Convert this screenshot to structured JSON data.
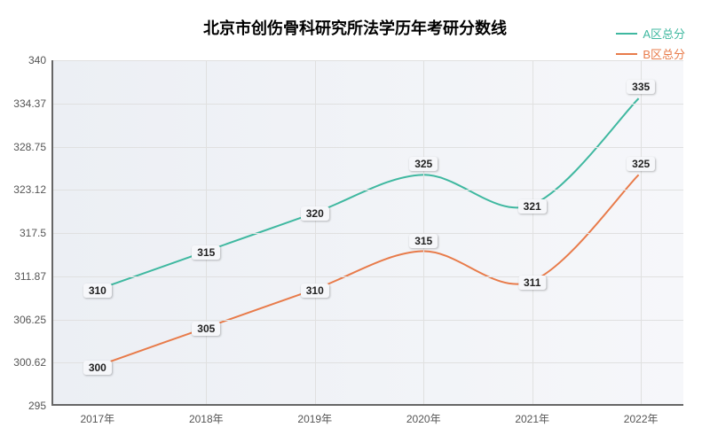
{
  "chart": {
    "type": "line",
    "title": "北京市创伤骨科研究所法学历年考研分数线",
    "title_fontsize": 18,
    "background_gradient": [
      "#eceff4",
      "#f6f7fa"
    ],
    "grid_color": "#e0e0e0",
    "axis_color": "#666666",
    "label_box_bg": "#f6f7fa",
    "label_fontsize": 12,
    "x": {
      "categories": [
        "2017年",
        "2018年",
        "2019年",
        "2020年",
        "2021年",
        "2022年"
      ]
    },
    "y": {
      "min": 295,
      "max": 340,
      "ticks": [
        295,
        300.62,
        306.25,
        311.87,
        317.5,
        323.12,
        328.75,
        334.37,
        340
      ]
    },
    "series": [
      {
        "name": "A区总分",
        "color": "#3fb8a0",
        "line_width": 2,
        "smooth": true,
        "values": [
          310,
          315,
          320,
          325,
          321,
          335
        ],
        "label_offsets_y": [
          0,
          0,
          0,
          -13,
          0,
          -13
        ]
      },
      {
        "name": "B区总分",
        "color": "#e87b4a",
        "line_width": 2,
        "smooth": true,
        "values": [
          300,
          305,
          310,
          315,
          311,
          325
        ],
        "label_offsets_y": [
          0,
          0,
          0,
          -13,
          0,
          -13
        ]
      }
    ],
    "legend": {
      "position": "top-right",
      "fontsize": 13
    }
  }
}
